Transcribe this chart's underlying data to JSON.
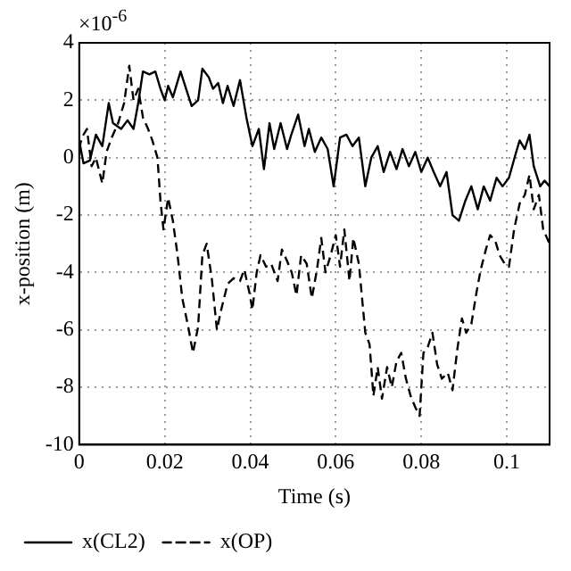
{
  "chart_data": {
    "type": "line",
    "xlabel": "Time (s)",
    "ylabel": "x-position (m)",
    "annotations": [
      "×10$^{-6}$"
    ],
    "xlim": [
      0,
      0.11
    ],
    "xticks": [
      0,
      0.02,
      0.04,
      0.06,
      0.08,
      0.1
    ],
    "ylim": [
      -10,
      4
    ],
    "yticks": [
      -10,
      -8,
      -6,
      -4,
      -2,
      0,
      2,
      4
    ],
    "grid": true,
    "legend": "bottom",
    "marker": "none",
    "series": [
      {
        "name": "x(CL2)",
        "color": "#000000",
        "line_style": "solid",
        "x": [
          0,
          0.001,
          0.0025,
          0.0039,
          0.0054,
          0.0069,
          0.0079,
          0.0098,
          0.0113,
          0.0127,
          0.0138,
          0.0149,
          0.0164,
          0.0178,
          0.019,
          0.02,
          0.0208,
          0.0219,
          0.0237,
          0.0252,
          0.0263,
          0.0278,
          0.0288,
          0.0303,
          0.0313,
          0.0325,
          0.0336,
          0.0347,
          0.0361,
          0.0376,
          0.0391,
          0.0405,
          0.042,
          0.0432,
          0.0445,
          0.0456,
          0.0471,
          0.0486,
          0.0496,
          0.0512,
          0.0527,
          0.0537,
          0.0551,
          0.0566,
          0.0581,
          0.0595,
          0.061,
          0.0625,
          0.0639,
          0.0654,
          0.0669,
          0.0683,
          0.0698,
          0.0712,
          0.0727,
          0.0742,
          0.0756,
          0.0771,
          0.0786,
          0.08,
          0.0815,
          0.0829,
          0.0844,
          0.0859,
          0.0873,
          0.0888,
          0.0903,
          0.0917,
          0.0932,
          0.0946,
          0.0961,
          0.0976,
          0.099,
          0.1005,
          0.102,
          0.103,
          0.1042,
          0.1053,
          0.1063,
          0.1078,
          0.1088,
          0.11
        ],
        "values": [
          0.6,
          -0.2,
          -0.1,
          0.8,
          0.4,
          1.9,
          1.2,
          1.0,
          1.3,
          1.0,
          1.9,
          3.0,
          2.9,
          3.0,
          2.4,
          2.0,
          2.5,
          2.1,
          3.0,
          2.3,
          1.8,
          2.0,
          3.1,
          2.8,
          2.4,
          2.6,
          1.9,
          2.5,
          1.8,
          2.7,
          1.4,
          0.4,
          1.0,
          -0.4,
          1.2,
          0.3,
          1.2,
          0.3,
          0.8,
          1.5,
          0.4,
          1.0,
          0.2,
          0.7,
          0.3,
          -1.0,
          0.7,
          0.8,
          0.4,
          0.7,
          -1.0,
          0.0,
          0.4,
          -0.5,
          0.2,
          -0.4,
          0.3,
          -0.3,
          0.2,
          -0.5,
          0.0,
          -0.5,
          -1.0,
          -0.5,
          -2.0,
          -2.2,
          -1.5,
          -1.0,
          -1.8,
          -1.0,
          -1.5,
          -0.7,
          -1.0,
          -0.7,
          0.1,
          0.6,
          0.3,
          0.8,
          -0.3,
          -1.0,
          -0.8,
          -1.0
        ]
      },
      {
        "name": "x(OP)",
        "color": "#000000",
        "line_style": "dashed",
        "x": [
          0,
          0.0006,
          0.0018,
          0.0029,
          0.0039,
          0.0054,
          0.0064,
          0.0076,
          0.0091,
          0.0105,
          0.0117,
          0.0127,
          0.0138,
          0.0149,
          0.0161,
          0.0171,
          0.0183,
          0.019,
          0.0197,
          0.0208,
          0.0219,
          0.023,
          0.0241,
          0.0255,
          0.0266,
          0.0278,
          0.0288,
          0.0298,
          0.031,
          0.0322,
          0.0332,
          0.0347,
          0.0361,
          0.0376,
          0.0386,
          0.0398,
          0.0405,
          0.0415,
          0.0424,
          0.0437,
          0.0449,
          0.0464,
          0.0474,
          0.0486,
          0.0497,
          0.0508,
          0.0519,
          0.0532,
          0.0544,
          0.0556,
          0.0566,
          0.0576,
          0.0588,
          0.06,
          0.061,
          0.062,
          0.0632,
          0.0641,
          0.0654,
          0.0669,
          0.0679,
          0.0688,
          0.0698,
          0.0708,
          0.072,
          0.0731,
          0.0742,
          0.0753,
          0.0764,
          0.0775,
          0.0786,
          0.0796,
          0.0805,
          0.0815,
          0.0826,
          0.0837,
          0.0848,
          0.0862,
          0.0873,
          0.0884,
          0.0895,
          0.0905,
          0.0917,
          0.0929,
          0.0939,
          0.0951,
          0.0961,
          0.0973,
          0.0983,
          0.0995,
          0.1005,
          0.1017,
          0.103,
          0.1042,
          0.1053,
          0.1063,
          0.1075,
          0.1085,
          0.11
        ],
        "values": [
          0.3,
          0.7,
          1.0,
          -0.3,
          0.0,
          -0.9,
          0.2,
          0.7,
          1.2,
          1.9,
          3.2,
          2.0,
          2.4,
          1.4,
          1.0,
          0.6,
          0.0,
          -1.5,
          -2.5,
          -1.4,
          -2.2,
          -3.4,
          -4.9,
          -5.9,
          -6.8,
          -5.9,
          -3.4,
          -3.0,
          -4.2,
          -6.0,
          -5.3,
          -4.4,
          -4.2,
          -4.3,
          -3.9,
          -4.7,
          -5.3,
          -4.0,
          -3.4,
          -3.8,
          -3.7,
          -4.3,
          -3.2,
          -3.6,
          -4.0,
          -4.8,
          -3.4,
          -3.7,
          -4.9,
          -3.9,
          -2.8,
          -4.0,
          -3.4,
          -2.7,
          -3.8,
          -2.5,
          -4.3,
          -2.8,
          -3.7,
          -6.1,
          -6.5,
          -8.3,
          -7.3,
          -8.4,
          -7.3,
          -8.0,
          -7.1,
          -6.8,
          -7.7,
          -8.3,
          -8.7,
          -9.0,
          -6.8,
          -6.6,
          -6.1,
          -7.2,
          -7.7,
          -7.5,
          -8.1,
          -6.7,
          -5.6,
          -6.1,
          -5.8,
          -4.7,
          -3.9,
          -3.2,
          -2.7,
          -2.9,
          -3.4,
          -3.7,
          -3.8,
          -2.5,
          -1.6,
          -1.3,
          -0.6,
          -1.8,
          -1.3,
          -2.5,
          -3.0
        ]
      }
    ]
  }
}
